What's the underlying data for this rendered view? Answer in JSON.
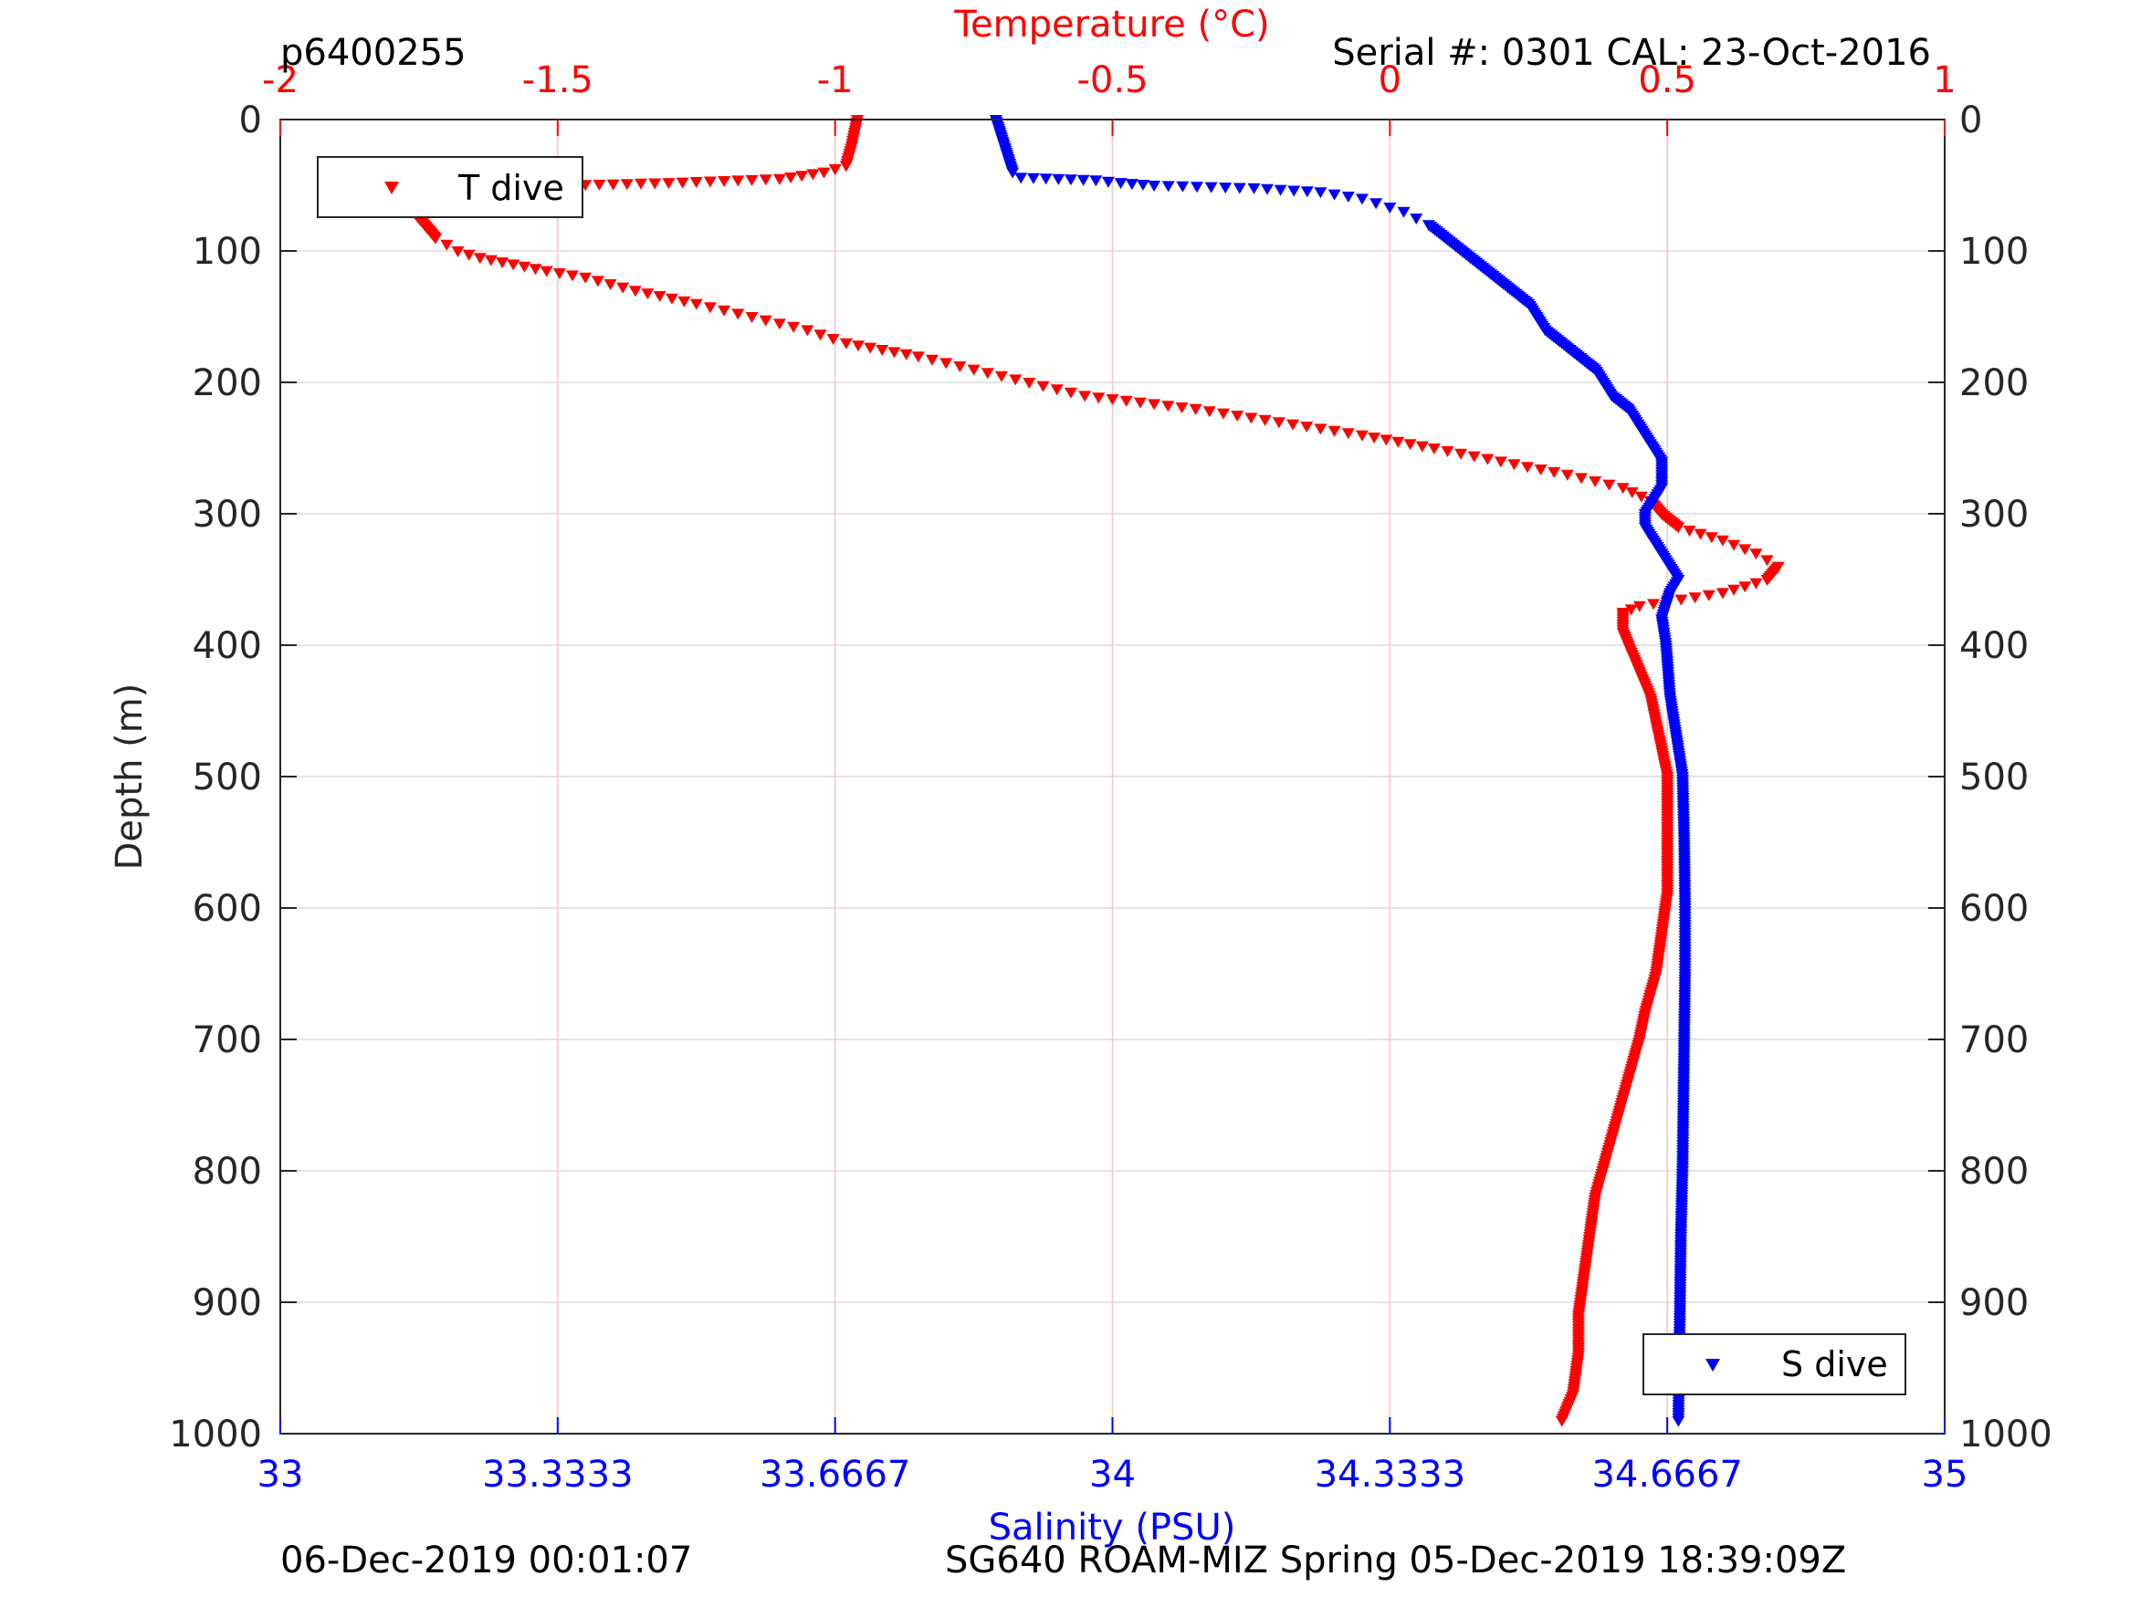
{
  "header": {
    "profile_id": "p6400255",
    "serial": "Serial #: 0301  CAL: 23-Oct-2016"
  },
  "footer": {
    "left": "06-Dec-2019 00:01:07",
    "right": "SG640 ROAM-MIZ Spring 05-Dec-2019 18:39:09Z"
  },
  "colors": {
    "temperature": "#ff0000",
    "salinity": "#0000ff",
    "axis": "#262626",
    "grid": "#dcdcdc",
    "temp_grid": "#f5c4c4"
  },
  "chart_data": {
    "type": "scatter",
    "marker": "triangle-down",
    "title": "",
    "ylabel": "Depth (m)",
    "ylim": [
      0,
      1000
    ],
    "y_reversed": true,
    "y_ticks": [
      "0",
      "100",
      "200",
      "300",
      "400",
      "500",
      "600",
      "700",
      "800",
      "900",
      "1000"
    ],
    "temp_axis": {
      "label": "Temperature (°C)",
      "position": "top",
      "lim": [
        -2,
        1
      ],
      "ticks": [
        "-2",
        "-1.5",
        "-1",
        "-0.5",
        "0",
        "0.5",
        "1"
      ]
    },
    "sal_axis": {
      "label": "Salinity (PSU)",
      "position": "bottom",
      "lim": [
        33,
        35
      ],
      "ticks": [
        "33",
        "33.3333",
        "33.6667",
        "34",
        "34.3333",
        "34.6667",
        "35"
      ]
    },
    "grid": true,
    "legend": [
      {
        "name": "T dive",
        "placement": "top-left"
      },
      {
        "name": "S dive",
        "placement": "bottom-right"
      }
    ],
    "series": [
      {
        "name": "T dive",
        "axis": "temperature",
        "depth": [
          0,
          20,
          35,
          40,
          45,
          48,
          50,
          52,
          55,
          58,
          60,
          65,
          70,
          75,
          80,
          85,
          90,
          95,
          100,
          105,
          110,
          115,
          120,
          130,
          140,
          150,
          160,
          170,
          180,
          190,
          200,
          210,
          220,
          230,
          240,
          250,
          260,
          270,
          280,
          290,
          300,
          310,
          320,
          330,
          340,
          350,
          360,
          370,
          375,
          380,
          390,
          400,
          420,
          440,
          460,
          480,
          500,
          530,
          560,
          590,
          620,
          650,
          680,
          700,
          730,
          760,
          790,
          820,
          850,
          880,
          910,
          940,
          970,
          990
        ],
        "value": [
          -0.96,
          -0.97,
          -0.98,
          -1.02,
          -1.1,
          -1.3,
          -1.5,
          -1.62,
          -1.7,
          -1.72,
          -1.74,
          -1.75,
          -1.76,
          -1.75,
          -1.74,
          -1.73,
          -1.72,
          -1.7,
          -1.68,
          -1.64,
          -1.58,
          -1.52,
          -1.45,
          -1.36,
          -1.25,
          -1.15,
          -1.05,
          -0.98,
          -0.85,
          -0.75,
          -0.65,
          -0.55,
          -0.35,
          -0.2,
          -0.05,
          0.08,
          0.2,
          0.32,
          0.42,
          0.47,
          0.49,
          0.52,
          0.6,
          0.66,
          0.7,
          0.68,
          0.6,
          0.45,
          0.42,
          0.42,
          0.42,
          0.43,
          0.45,
          0.47,
          0.48,
          0.49,
          0.5,
          0.5,
          0.5,
          0.5,
          0.49,
          0.48,
          0.46,
          0.45,
          0.43,
          0.41,
          0.39,
          0.37,
          0.36,
          0.35,
          0.34,
          0.34,
          0.33,
          0.31
        ]
      },
      {
        "name": "S dive",
        "axis": "salinity",
        "depth": [
          0,
          10,
          20,
          30,
          40,
          44,
          46,
          48,
          50,
          52,
          55,
          60,
          70,
          80,
          90,
          100,
          110,
          120,
          130,
          140,
          150,
          160,
          170,
          180,
          190,
          200,
          210,
          220,
          230,
          240,
          250,
          260,
          270,
          280,
          290,
          300,
          310,
          320,
          330,
          340,
          350,
          360,
          380,
          400,
          440,
          480,
          500,
          550,
          600,
          650,
          700,
          750,
          800,
          850,
          900,
          950,
          990
        ],
        "value": [
          33.86,
          33.865,
          33.87,
          33.875,
          33.88,
          33.89,
          33.98,
          34.01,
          34.05,
          34.17,
          34.25,
          34.3,
          34.35,
          34.38,
          34.4,
          34.42,
          34.44,
          34.46,
          34.48,
          34.5,
          34.51,
          34.52,
          34.54,
          34.56,
          34.58,
          34.59,
          34.6,
          34.62,
          34.63,
          34.64,
          34.65,
          34.66,
          34.66,
          34.66,
          34.65,
          34.64,
          34.64,
          34.65,
          34.66,
          34.67,
          34.68,
          34.67,
          34.66,
          34.665,
          34.67,
          34.68,
          34.685,
          34.687,
          34.688,
          34.688,
          34.687,
          34.686,
          34.685,
          34.683,
          34.682,
          34.681,
          34.68
        ]
      }
    ]
  }
}
